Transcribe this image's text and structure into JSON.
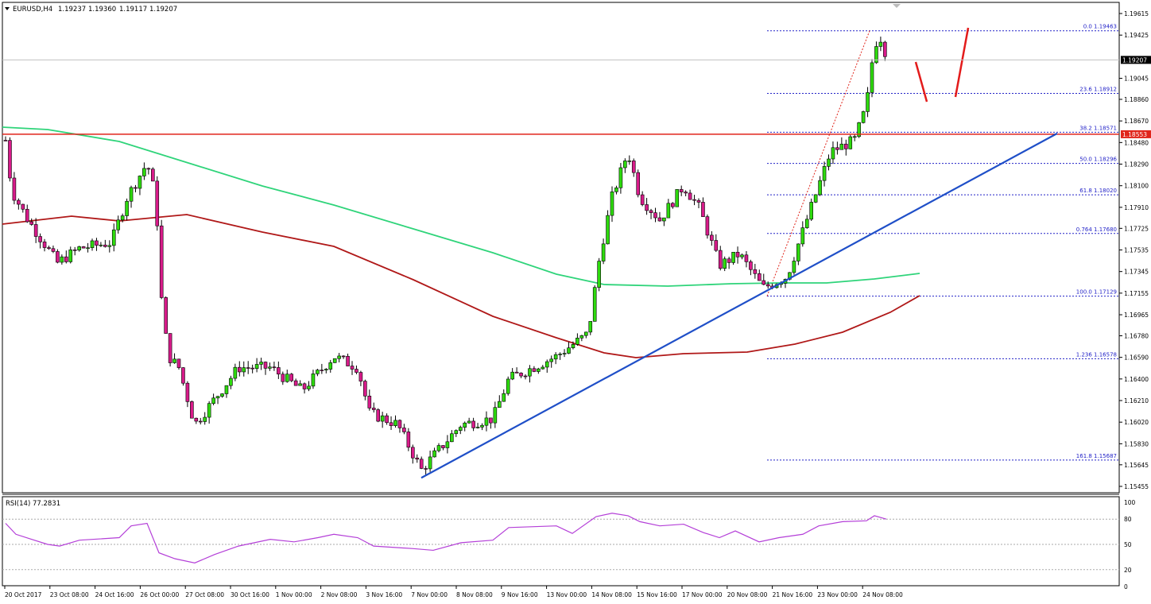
{
  "header": {
    "symbol": "EURUSD,H4",
    "open": "1.19237",
    "high": "1.19360",
    "low": "1.19117",
    "close": "1.19207"
  },
  "rsi_label": "RSI(14) 77.2831",
  "colors": {
    "bull": "#2edb0e",
    "bear": "#d81b8a",
    "resistance": "#e0251b",
    "trendline": "#1f4fc8",
    "ma_green": "#2fd47a",
    "ma_red": "#b01818",
    "fib": "#2323c8",
    "rsi": "#b43fd8",
    "arrows": "#e31b1b"
  },
  "chart_data": {
    "type": "candlestick",
    "symbol": "EURUSD",
    "timeframe": "H4",
    "ylim": [
      1.1535,
      1.197
    ],
    "price_ticks": [
      "1.19615",
      "1.19425",
      "1.19045",
      "1.18860",
      "1.18670",
      "1.18480",
      "1.18290",
      "1.18100",
      "1.17910",
      "1.17725",
      "1.17535",
      "1.17345",
      "1.17155",
      "1.16965",
      "1.16780",
      "1.16590",
      "1.16400",
      "1.16210",
      "1.16020",
      "1.15830",
      "1.15645",
      "1.15455"
    ],
    "x_ticks": [
      "20 Oct 2017",
      "23 Oct 08:00",
      "24 Oct 16:00",
      "26 Oct 00:00",
      "27 Oct 08:00",
      "30 Oct 16:00",
      "1 Nov 00:00",
      "2 Nov 08:00",
      "3 Nov 16:00",
      "7 Nov 00:00",
      "8 Nov 08:00",
      "9 Nov 16:00",
      "13 Nov 00:00",
      "14 Nov 08:00",
      "15 Nov 16:00",
      "17 Nov 00:00",
      "20 Nov 08:00",
      "21 Nov 16:00",
      "23 Nov 00:00",
      "24 Nov 08:00"
    ],
    "current_price": "1.19207",
    "resistance_price": "1.18553",
    "fib_levels": [
      {
        "label": "0.0",
        "price": "1.19463"
      },
      {
        "label": "23.6",
        "price": "1.18912"
      },
      {
        "label": "38.2",
        "price": "1.18571"
      },
      {
        "label": "50.0",
        "price": "1.18296"
      },
      {
        "label": "61.8",
        "price": "1.18020"
      },
      {
        "label": "0.764",
        "price": "1.17680"
      },
      {
        "label": "100.0",
        "price": "1.17129"
      },
      {
        "label": "1.236",
        "price": "1.16578"
      },
      {
        "label": "161.8",
        "price": "1.15687"
      }
    ],
    "trendline": {
      "from": [
        530,
        1.1553
      ],
      "to": [
        1330,
        1.1856
      ]
    },
    "rsi": {
      "period": 14,
      "value": "77.2831",
      "ticks": [
        "100",
        "80",
        "50",
        "20",
        "0"
      ],
      "levels": [
        80,
        50,
        20
      ]
    }
  }
}
